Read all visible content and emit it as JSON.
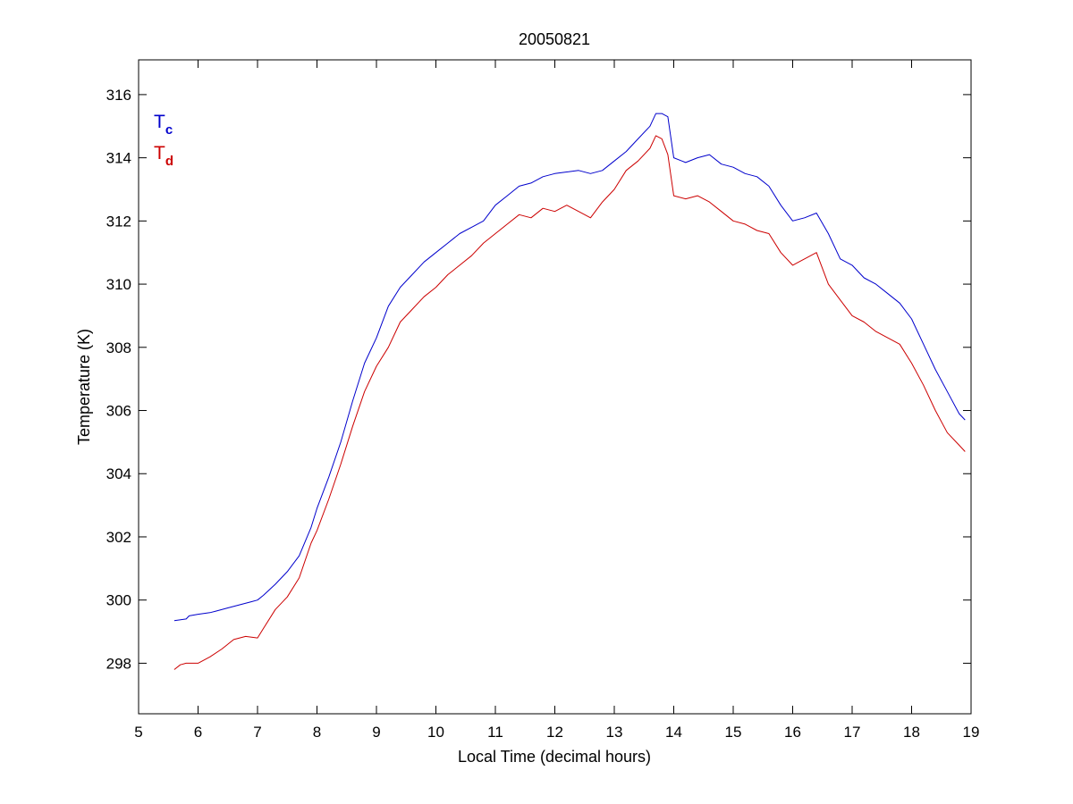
{
  "chart_data": {
    "type": "line",
    "title": "20050821",
    "xlabel": "Local Time (decimal hours)",
    "ylabel": "Temperature (K)",
    "xlim": [
      5,
      19
    ],
    "ylim": [
      296.4,
      317.1
    ],
    "xticks": [
      5,
      6,
      7,
      8,
      9,
      10,
      11,
      12,
      13,
      14,
      15,
      16,
      17,
      18,
      19
    ],
    "yticks": [
      298,
      300,
      302,
      304,
      306,
      308,
      310,
      312,
      314,
      316
    ],
    "xtick_labels": [
      "5",
      "6",
      "7",
      "8",
      "9",
      "10",
      "11",
      "12",
      "13",
      "14",
      "15",
      "16",
      "17",
      "18",
      "19"
    ],
    "ytick_labels": [
      "298",
      "300",
      "302",
      "304",
      "306",
      "308",
      "310",
      "312",
      "314",
      "316"
    ],
    "grid": false,
    "legend_position": "top-left",
    "series": [
      {
        "name": "T",
        "subscript": "c",
        "color": "#0000cc",
        "x": [
          5.6,
          5.8,
          5.85,
          6.0,
          6.2,
          6.3,
          6.5,
          6.7,
          6.9,
          7.0,
          7.1,
          7.3,
          7.5,
          7.7,
          7.9,
          8.0,
          8.2,
          8.4,
          8.6,
          8.8,
          9.0,
          9.2,
          9.4,
          9.6,
          9.8,
          10.0,
          10.2,
          10.4,
          10.6,
          10.8,
          11.0,
          11.2,
          11.4,
          11.6,
          11.8,
          12.0,
          12.2,
          12.4,
          12.6,
          12.8,
          13.0,
          13.2,
          13.4,
          13.6,
          13.7,
          13.8,
          13.9,
          14.0,
          14.2,
          14.4,
          14.6,
          14.8,
          15.0,
          15.2,
          15.4,
          15.6,
          15.8,
          16.0,
          16.2,
          16.4,
          16.6,
          16.8,
          17.0,
          17.2,
          17.4,
          17.6,
          17.8,
          18.0,
          18.2,
          18.4,
          18.6,
          18.8,
          18.9
        ],
        "values": [
          299.35,
          299.4,
          299.5,
          299.55,
          299.6,
          299.65,
          299.75,
          299.85,
          299.95,
          300.0,
          300.15,
          300.5,
          300.9,
          301.4,
          302.3,
          302.9,
          303.9,
          305.0,
          306.3,
          307.5,
          308.3,
          309.3,
          309.9,
          310.3,
          310.7,
          311.0,
          311.3,
          311.6,
          311.8,
          312.0,
          312.5,
          312.8,
          313.1,
          313.2,
          313.4,
          313.5,
          313.55,
          313.6,
          313.5,
          313.6,
          313.9,
          314.2,
          314.6,
          315.0,
          315.4,
          315.4,
          315.3,
          314.0,
          313.85,
          314.0,
          314.1,
          313.8,
          313.7,
          313.5,
          313.4,
          313.1,
          312.5,
          312.0,
          312.1,
          312.25,
          311.6,
          310.8,
          310.6,
          310.2,
          310.0,
          309.7,
          309.4,
          308.9,
          308.1,
          307.3,
          306.6,
          305.9,
          305.7
        ]
      },
      {
        "name": "T",
        "subscript": "d",
        "color": "#cc0000",
        "x": [
          5.6,
          5.7,
          5.8,
          6.0,
          6.2,
          6.4,
          6.6,
          6.8,
          7.0,
          7.1,
          7.3,
          7.5,
          7.7,
          7.9,
          8.0,
          8.2,
          8.4,
          8.6,
          8.8,
          9.0,
          9.2,
          9.4,
          9.6,
          9.8,
          10.0,
          10.2,
          10.4,
          10.6,
          10.8,
          11.0,
          11.2,
          11.4,
          11.6,
          11.8,
          12.0,
          12.2,
          12.4,
          12.6,
          12.8,
          13.0,
          13.2,
          13.4,
          13.6,
          13.7,
          13.8,
          13.9,
          14.0,
          14.2,
          14.4,
          14.6,
          14.8,
          15.0,
          15.2,
          15.4,
          15.6,
          15.8,
          16.0,
          16.2,
          16.4,
          16.6,
          16.8,
          17.0,
          17.2,
          17.4,
          17.6,
          17.8,
          18.0,
          18.2,
          18.4,
          18.6,
          18.8,
          18.9
        ],
        "values": [
          297.8,
          297.95,
          298.0,
          298.0,
          298.2,
          298.45,
          298.75,
          298.85,
          298.8,
          299.1,
          299.7,
          300.1,
          300.7,
          301.8,
          302.2,
          303.2,
          304.3,
          305.5,
          306.6,
          307.4,
          308.0,
          308.8,
          309.2,
          309.6,
          309.9,
          310.3,
          310.6,
          310.9,
          311.3,
          311.6,
          311.9,
          312.2,
          312.1,
          312.4,
          312.3,
          312.5,
          312.3,
          312.1,
          312.6,
          313.0,
          313.6,
          313.9,
          314.3,
          314.7,
          314.6,
          314.1,
          312.8,
          312.7,
          312.8,
          312.6,
          312.3,
          312.0,
          311.9,
          311.7,
          311.6,
          311.0,
          310.6,
          310.8,
          311.0,
          310.0,
          309.5,
          309.0,
          308.8,
          308.5,
          308.3,
          308.1,
          307.5,
          306.8,
          306.0,
          305.3,
          304.9,
          304.7
        ]
      }
    ]
  }
}
